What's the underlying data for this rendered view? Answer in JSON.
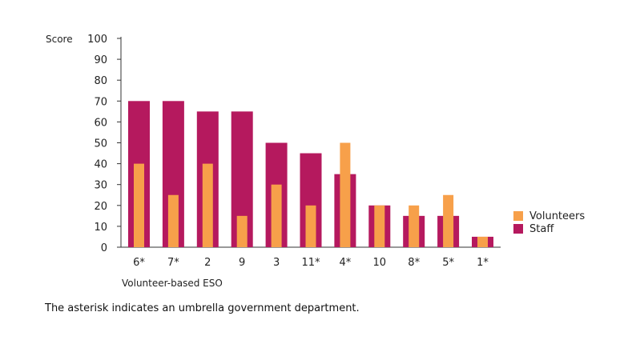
{
  "chart_data": {
    "type": "bar",
    "ylabel": "Score",
    "xlabel": "Volunteer-based ESO",
    "ylim": [
      0,
      100
    ],
    "yticks": [
      0,
      10,
      20,
      30,
      40,
      50,
      60,
      70,
      80,
      90,
      100
    ],
    "categories": [
      "6*",
      "7*",
      "2",
      "9",
      "3",
      "11*",
      "4*",
      "10",
      "8*",
      "5*",
      "1*"
    ],
    "series": [
      {
        "name": "Staff",
        "color": "#b5195e",
        "values": [
          70,
          70,
          65,
          65,
          50,
          45,
          35,
          20,
          15,
          15,
          5
        ]
      },
      {
        "name": "Volunteers",
        "color": "#f7a04a",
        "values": [
          40,
          25,
          40,
          15,
          30,
          20,
          50,
          20,
          20,
          25,
          5
        ]
      }
    ],
    "legend_position": "right",
    "grid": false
  },
  "footnote": "The asterisk indicates an umbrella government department."
}
